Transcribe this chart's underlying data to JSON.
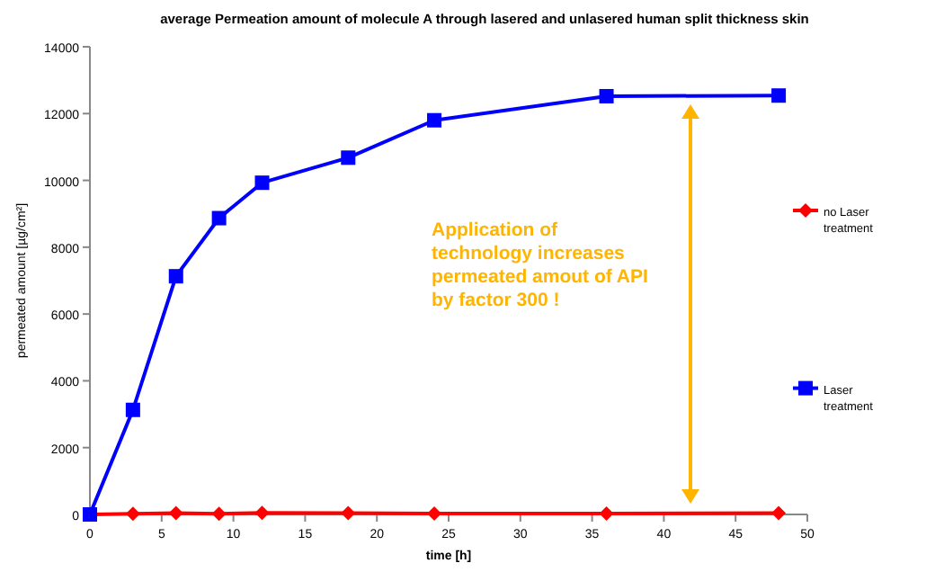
{
  "chart_data": {
    "type": "line",
    "title": "average Permeation amount of molecule A through lasered and unlasered human split thickness skin",
    "xlabel": "time [h]",
    "ylabel": "permeated amount [µg/cm²]",
    "x": [
      0,
      3,
      6,
      9,
      12,
      18,
      24,
      36,
      48
    ],
    "series": [
      {
        "name": "no Laser treatment",
        "color": "#ff0000",
        "marker": "diamond",
        "values": [
          0,
          20,
          40,
          20,
          50,
          40,
          30,
          30,
          40
        ]
      },
      {
        "name": "Laser treatment",
        "color": "#0000ff",
        "marker": "square",
        "values": [
          0,
          3130,
          7130,
          8870,
          9930,
          10680,
          11800,
          12520,
          12540
        ]
      }
    ],
    "xlim": [
      0,
      50
    ],
    "xticks": [
      0,
      5,
      10,
      15,
      20,
      25,
      30,
      35,
      40,
      45,
      50
    ],
    "ylim": [
      0,
      14000
    ],
    "yticks": [
      0,
      2000,
      4000,
      6000,
      8000,
      10000,
      12000,
      14000
    ],
    "grid": false,
    "legend": "right",
    "annotations": [
      "Application of technology increases permeated amout of API by factor 300 !"
    ]
  }
}
